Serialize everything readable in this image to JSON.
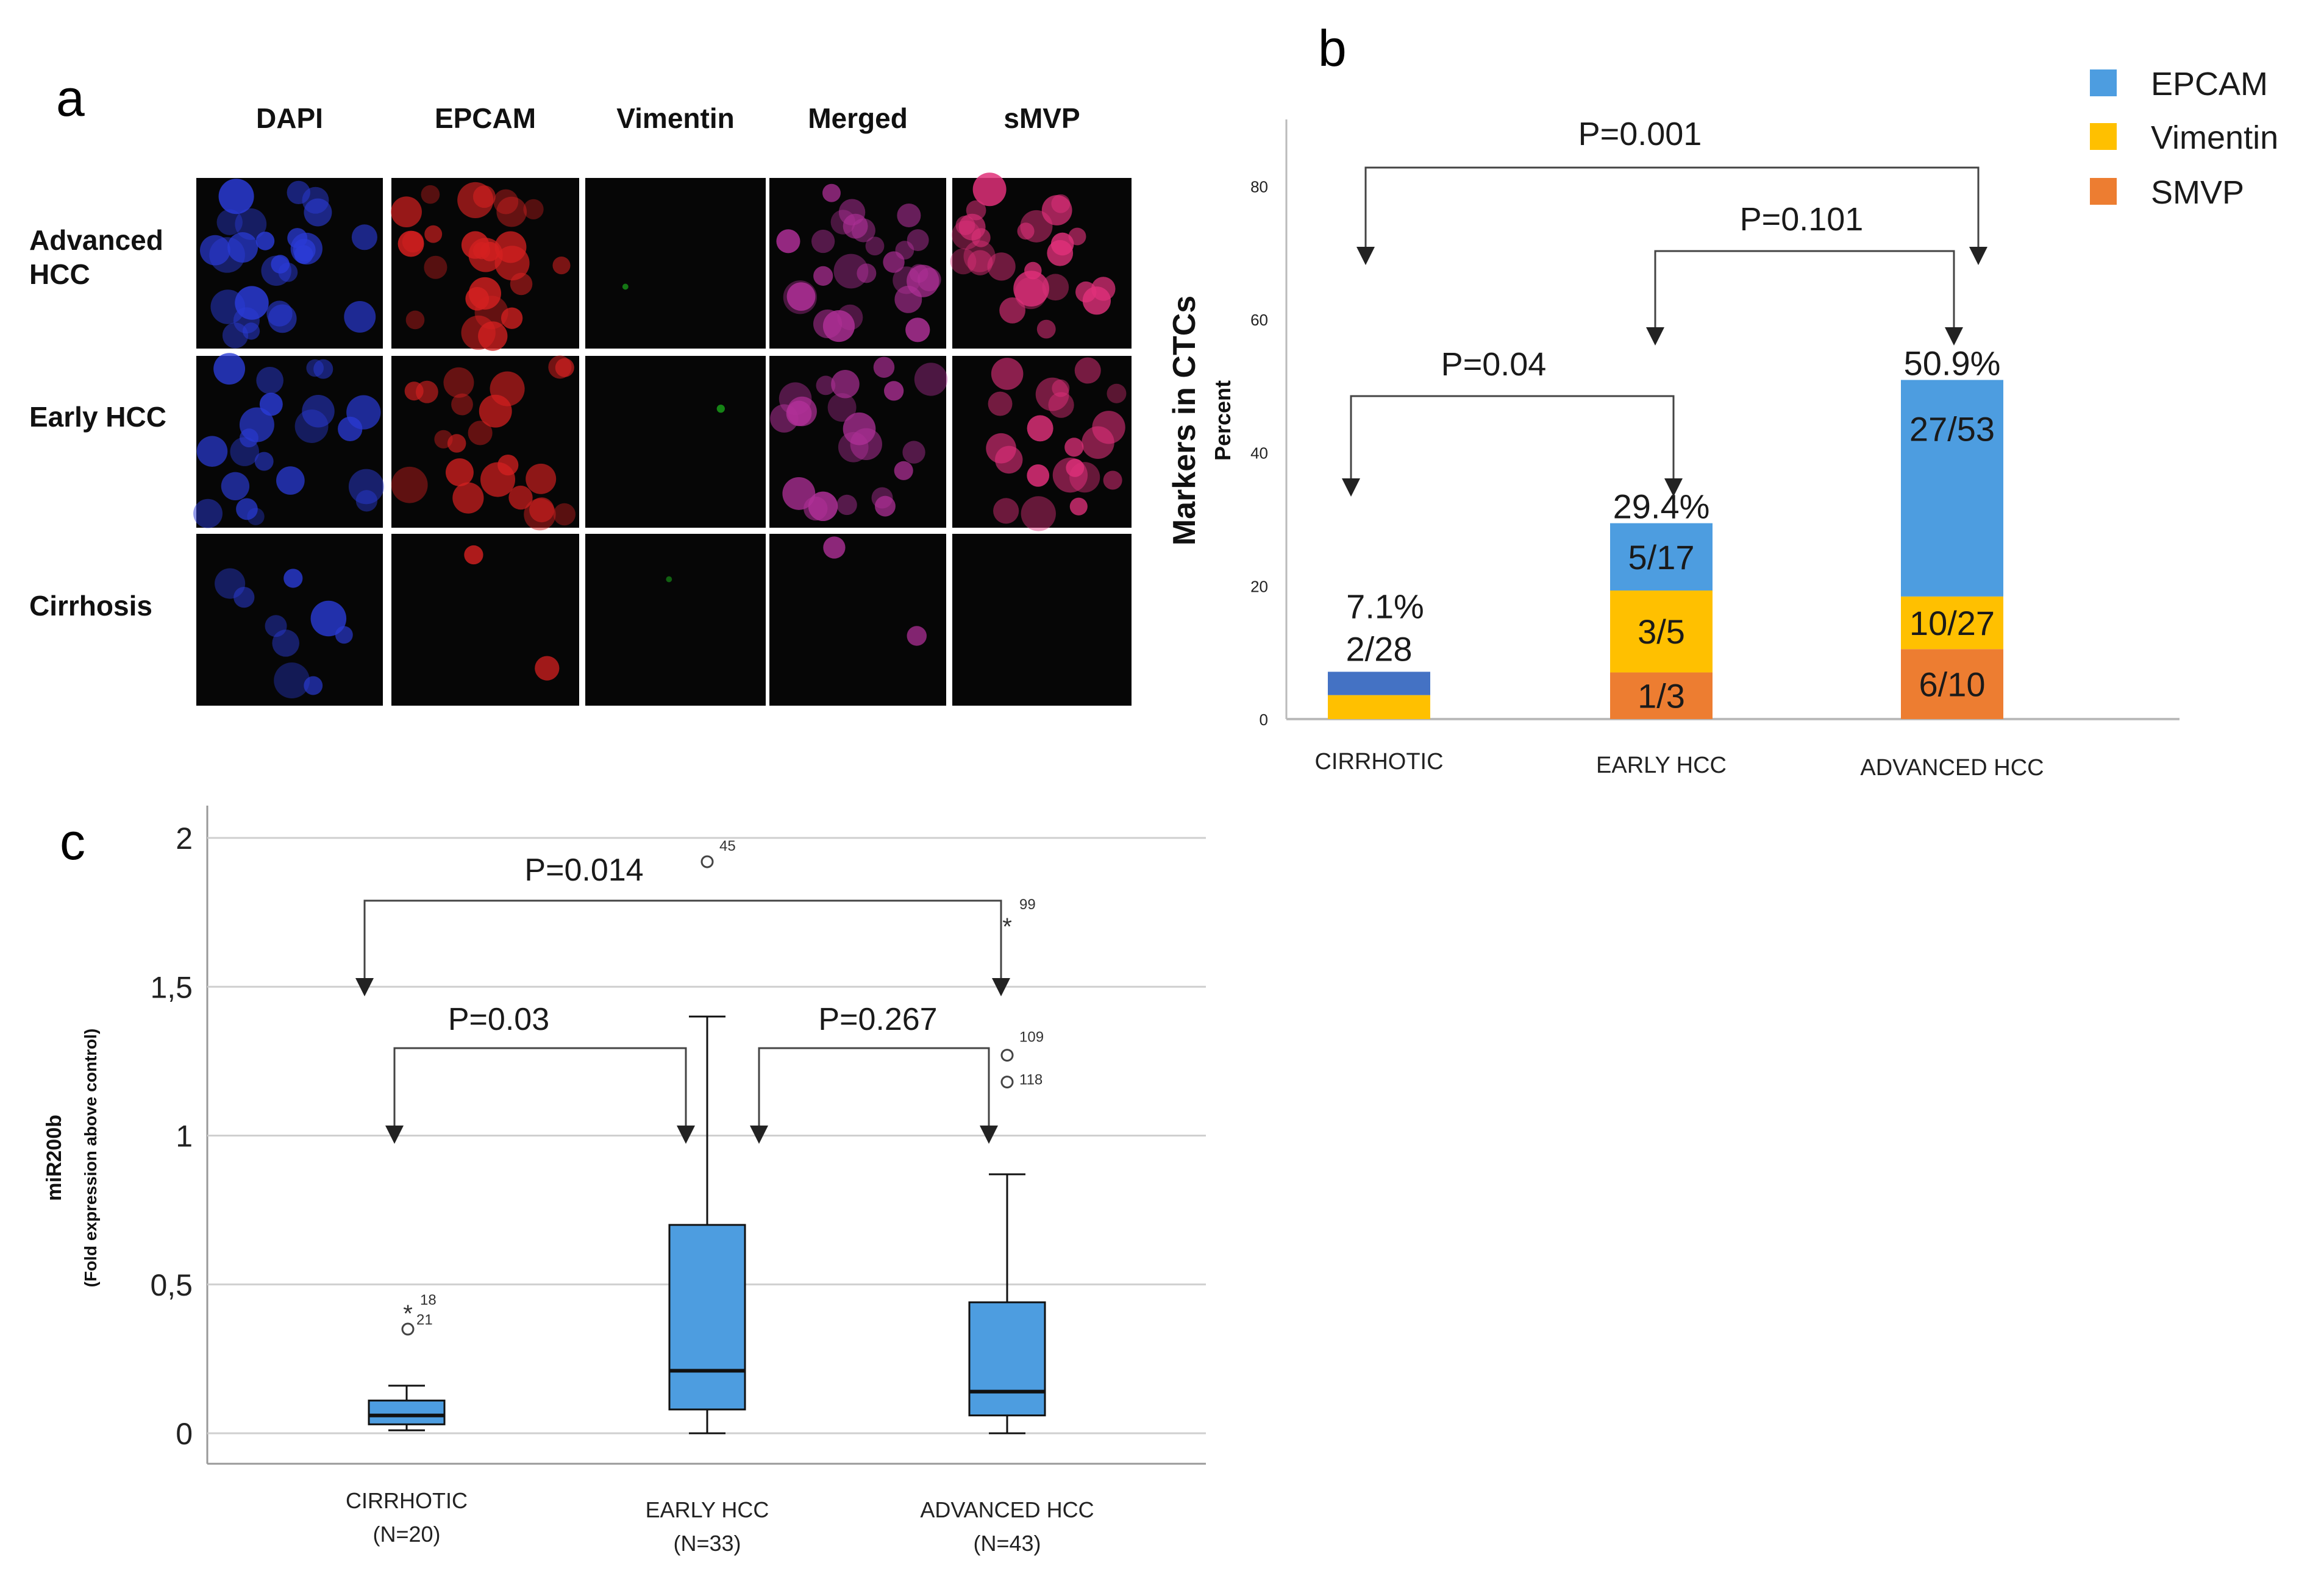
{
  "panel_a": {
    "letter": "a",
    "columns": [
      "DAPI",
      "EPCAM",
      "Vimentin",
      "Merged",
      "sMVP"
    ],
    "rows": [
      "Advanced\nHCC",
      "Early HCC",
      "Cirrhosis"
    ]
  },
  "panel_b": {
    "letter": "b",
    "legend": [
      {
        "name": "EPCAM",
        "color": "#4d9de0"
      },
      {
        "name": "Vimentin",
        "color": "#ffc000"
      },
      {
        "name": "SMVP",
        "color": "#ed7d31"
      }
    ],
    "ylabel": "Markers in CTCs",
    "ylabel_sub": "Percent",
    "pvalues": [
      "P=0.001",
      "P=0.101",
      "P=0.04"
    ]
  },
  "panel_c": {
    "letter": "c",
    "ylabel": "miR200b",
    "ylabel_sub": "(Fold expression above control)",
    "pvalues": [
      "P=0.014",
      "P=0.03",
      "P=0.267"
    ],
    "categories": [
      {
        "name": "CIRRHOTIC",
        "n": "(N=20)"
      },
      {
        "name": "EARLY HCC",
        "n": "(N=33)"
      },
      {
        "name": "ADVANCED HCC",
        "n": "(N=43)"
      }
    ]
  },
  "chart_data": [
    {
      "type": "bar",
      "stacked": true,
      "categories": [
        "CIRRHOTIC",
        "EARLY HCC",
        "ADVANCED HCC"
      ],
      "ylabel": "Markers in CTCs",
      "yticks": [
        0,
        20,
        40,
        60,
        80
      ],
      "ylim": [
        0,
        90
      ],
      "grid": false,
      "legend_position": "top-right",
      "series": [
        {
          "name": "SMVP",
          "color": "#ed7d31",
          "values": [
            0,
            7,
            10.5
          ],
          "labels": [
            "",
            "1/3",
            "6/10"
          ]
        },
        {
          "name": "Vimentin",
          "color": "#ffc000",
          "values": [
            3.6,
            12.3,
            7.9
          ],
          "labels": [
            "",
            "3/5",
            "10/27"
          ]
        },
        {
          "name": "EPCAM",
          "color": "#4d9de0",
          "values": [
            3.5,
            10.1,
            32.5
          ],
          "labels": [
            "2/28",
            "5/17",
            "27/53"
          ],
          "bar_colors": [
            "#4472c4",
            "#4d9de0",
            "#4d9de0"
          ]
        }
      ],
      "totals": [
        "7.1%",
        "29.4%",
        "50.9%"
      ],
      "comparisons": [
        {
          "label": "P=0.001",
          "from": "CIRRHOTIC",
          "to": "ADVANCED HCC"
        },
        {
          "label": "P=0.101",
          "from": "EARLY HCC",
          "to": "ADVANCED HCC"
        },
        {
          "label": "P=0.04",
          "from": "CIRRHOTIC",
          "to": "EARLY HCC"
        }
      ]
    },
    {
      "type": "box",
      "categories": [
        "CIRRHOTIC",
        "EARLY HCC",
        "ADVANCED HCC"
      ],
      "ylabel": "miR200b",
      "yticks": [
        "0",
        "0,5",
        "1",
        "1,5",
        "2"
      ],
      "ylim": [
        0,
        2.05
      ],
      "grid": true,
      "boxes": [
        {
          "category": "CIRRHOTIC",
          "whisker_low": 0.01,
          "q1": 0.03,
          "median": 0.06,
          "q3": 0.11,
          "whisker_high": 0.16
        },
        {
          "category": "EARLY HCC",
          "whisker_low": 0.0,
          "q1": 0.08,
          "median": 0.21,
          "q3": 0.7,
          "whisker_high": 1.4
        },
        {
          "category": "ADVANCED HCC",
          "whisker_low": 0.0,
          "q1": 0.06,
          "median": 0.14,
          "q3": 0.44,
          "whisker_high": 0.87
        }
      ],
      "outliers": [
        {
          "category": "CIRRHOTIC",
          "value": 0.35,
          "marker": "circle",
          "label": ""
        },
        {
          "category": "CIRRHOTIC",
          "value": 0.42,
          "marker": "star",
          "label": "18"
        },
        {
          "category": "CIRRHOTIC",
          "value": 0.41,
          "marker": "none",
          "label": "21"
        },
        {
          "category": "EARLY HCC",
          "value": 1.92,
          "marker": "circle",
          "label": "45"
        },
        {
          "category": "ADVANCED HCC",
          "value": 1.72,
          "marker": "star",
          "label": "99"
        },
        {
          "category": "ADVANCED HCC",
          "value": 1.27,
          "marker": "circle",
          "label": "109"
        },
        {
          "category": "ADVANCED HCC",
          "value": 1.18,
          "marker": "circle",
          "label": "118"
        }
      ],
      "comparisons": [
        {
          "label": "P=0.014",
          "from": "CIRRHOTIC",
          "to": "ADVANCED HCC"
        },
        {
          "label": "P=0.03",
          "from": "CIRRHOTIC",
          "to": "EARLY HCC"
        },
        {
          "label": "P=0.267",
          "from": "EARLY HCC",
          "to": "ADVANCED HCC"
        }
      ]
    }
  ]
}
